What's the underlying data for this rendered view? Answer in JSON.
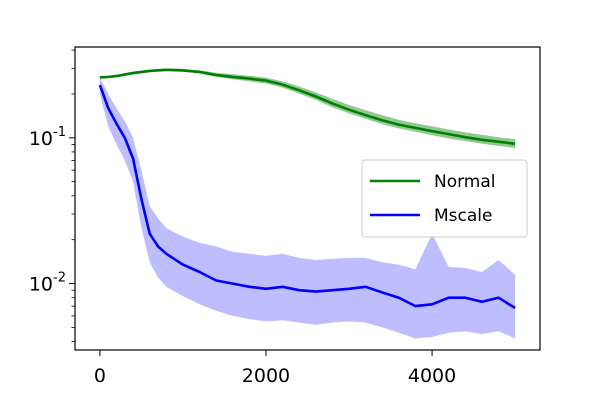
{
  "chart_data": {
    "type": "line",
    "title": "",
    "xlabel": "",
    "ylabel": "",
    "y_scale": "log",
    "xlim": [
      -300,
      5300
    ],
    "ylim": [
      0.0035,
      0.42
    ],
    "x_ticks": [
      0,
      2000,
      4000
    ],
    "x_tick_labels": [
      "0",
      "2000",
      "4000"
    ],
    "y_ticks": [
      0.1,
      0.01
    ],
    "y_tick_labels": [
      "10^{-1}",
      "10^{-2}"
    ],
    "grid": false,
    "legend": {
      "placement": "center-right"
    },
    "series": [
      {
        "name": "Normal",
        "color": "#008000",
        "band_color": "#7fbf7f",
        "x": [
          0,
          100,
          200,
          300,
          400,
          600,
          800,
          1000,
          1200,
          1400,
          1600,
          1800,
          2000,
          2200,
          2400,
          2600,
          2800,
          3000,
          3200,
          3400,
          3600,
          3800,
          4000,
          4200,
          4400,
          4600,
          4800,
          5000
        ],
        "y": [
          0.26,
          0.262,
          0.265,
          0.272,
          0.278,
          0.288,
          0.293,
          0.29,
          0.283,
          0.27,
          0.262,
          0.255,
          0.247,
          0.232,
          0.212,
          0.192,
          0.172,
          0.156,
          0.143,
          0.132,
          0.123,
          0.117,
          0.111,
          0.106,
          0.101,
          0.097,
          0.094,
          0.091
        ],
        "low": [
          0.257,
          0.258,
          0.26,
          0.266,
          0.272,
          0.283,
          0.288,
          0.285,
          0.277,
          0.262,
          0.252,
          0.244,
          0.236,
          0.221,
          0.201,
          0.182,
          0.162,
          0.147,
          0.135,
          0.124,
          0.116,
          0.11,
          0.104,
          0.099,
          0.095,
          0.091,
          0.088,
          0.085
        ],
        "high": [
          0.263,
          0.267,
          0.27,
          0.278,
          0.285,
          0.294,
          0.299,
          0.297,
          0.291,
          0.28,
          0.273,
          0.267,
          0.259,
          0.244,
          0.225,
          0.205,
          0.185,
          0.168,
          0.155,
          0.143,
          0.133,
          0.126,
          0.12,
          0.114,
          0.109,
          0.105,
          0.101,
          0.098
        ]
      },
      {
        "name": "Mscale",
        "color": "#0000ff",
        "band_color": "#b3b3ff",
        "x": [
          0,
          100,
          200,
          300,
          400,
          500,
          600,
          700,
          800,
          1000,
          1200,
          1400,
          1600,
          1800,
          2000,
          2200,
          2400,
          2600,
          2800,
          3000,
          3200,
          3400,
          3600,
          3800,
          4000,
          4200,
          4400,
          4600,
          4800,
          5000
        ],
        "y": [
          0.23,
          0.16,
          0.125,
          0.1,
          0.072,
          0.038,
          0.022,
          0.018,
          0.016,
          0.0135,
          0.012,
          0.0105,
          0.01,
          0.0095,
          0.0092,
          0.0095,
          0.009,
          0.0088,
          0.009,
          0.0092,
          0.0095,
          0.0087,
          0.008,
          0.007,
          0.0072,
          0.008,
          0.008,
          0.0075,
          0.008,
          0.0068
        ],
        "low": [
          0.2,
          0.12,
          0.09,
          0.07,
          0.05,
          0.024,
          0.014,
          0.011,
          0.0095,
          0.0082,
          0.0072,
          0.0065,
          0.006,
          0.0057,
          0.0055,
          0.0056,
          0.0054,
          0.0052,
          0.0054,
          0.0055,
          0.0054,
          0.005,
          0.0046,
          0.0042,
          0.0043,
          0.0046,
          0.0047,
          0.0045,
          0.0047,
          0.0042
        ],
        "high": [
          0.26,
          0.2,
          0.16,
          0.13,
          0.1,
          0.06,
          0.034,
          0.028,
          0.024,
          0.021,
          0.019,
          0.018,
          0.0165,
          0.016,
          0.0155,
          0.016,
          0.015,
          0.0145,
          0.0148,
          0.015,
          0.015,
          0.014,
          0.0135,
          0.0125,
          0.022,
          0.013,
          0.0128,
          0.012,
          0.0145,
          0.0115
        ]
      }
    ]
  }
}
